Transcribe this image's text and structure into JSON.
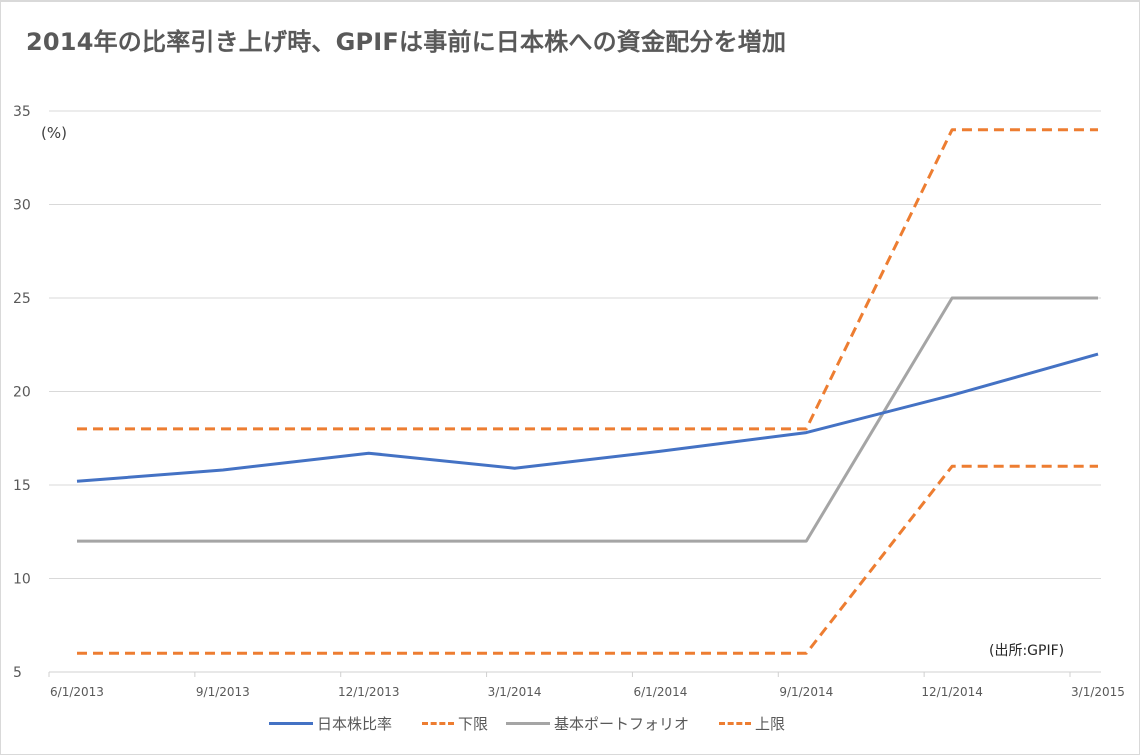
{
  "chart_title": "2014年の比率引き上げ時、GPIFは事前に日本株への資金配分を増加",
  "unit_label": "(%)",
  "source_note": "(出所:GPIF)",
  "legend": [
    {
      "label": "日本株比率",
      "color": "#4472c4",
      "style": "solid"
    },
    {
      "label": "下限",
      "color": "#ed7d31",
      "style": "dashed"
    },
    {
      "label": "基本ポートフォリオ",
      "color": "#a5a5a5",
      "style": "solid"
    },
    {
      "label": "上限",
      "color": "#ed7d31",
      "style": "dashed"
    }
  ],
  "chart_data": {
    "type": "line",
    "title": "2014年の比率引き上げ時、GPIFは事前に日本株への資金配分を増加",
    "xlabel": "",
    "ylabel": "(%)",
    "ylim": [
      5,
      35
    ],
    "yticks": [
      5,
      10,
      15,
      20,
      25,
      30,
      35
    ],
    "grid": true,
    "legend_position": "bottom",
    "annotations": [
      "(出所:GPIF)"
    ],
    "x": [
      "6/1/2013",
      "9/1/2013",
      "12/1/2013",
      "3/1/2014",
      "6/1/2014",
      "9/1/2014",
      "12/1/2014",
      "3/1/2015"
    ],
    "series": [
      {
        "name": "日本株比率",
        "color": "#4472c4",
        "style": "solid",
        "values": [
          15.2,
          15.8,
          16.7,
          15.9,
          16.8,
          17.8,
          19.8,
          22.0
        ]
      },
      {
        "name": "下限",
        "color": "#ed7d31",
        "style": "dashed",
        "values": [
          6,
          6,
          6,
          6,
          6,
          6,
          16,
          16
        ]
      },
      {
        "name": "基本ポートフォリオ",
        "color": "#a5a5a5",
        "style": "solid",
        "values": [
          12,
          12,
          12,
          12,
          12,
          12,
          25,
          25
        ]
      },
      {
        "name": "上限",
        "color": "#ed7d31",
        "style": "dashed",
        "values": [
          18,
          18,
          18,
          18,
          18,
          18,
          34,
          34
        ]
      }
    ]
  }
}
